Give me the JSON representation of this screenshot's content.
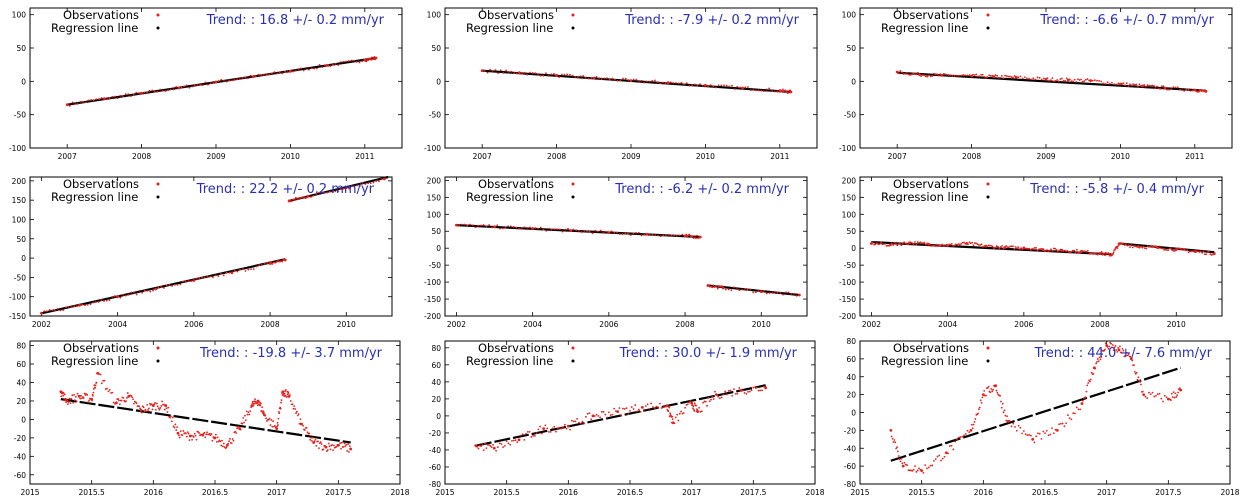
{
  "colors": {
    "observations": "#e8201c",
    "regression": "#000000",
    "trend_text": "#2a2fb5",
    "frame": "#000000"
  },
  "legend": {
    "observations_label": "Observations",
    "regression_label": "Regression line"
  },
  "chart_data": [
    {
      "type": "scatter",
      "trend": "Trend: : 16.8 +/- 0.2 mm/yr",
      "xlim": [
        2006.5,
        2011.5
      ],
      "ylim": [
        -100,
        110
      ],
      "xticks": [
        2007,
        2008,
        2009,
        2010,
        2011
      ],
      "yticks": [
        -100,
        -50,
        0,
        50,
        100
      ],
      "series": [
        {
          "name": "Observations",
          "x": [
            2007.0,
            2007.5,
            2008.0,
            2008.5,
            2009.0,
            2009.5,
            2010.0,
            2010.5,
            2011.0,
            2011.15
          ],
          "y": [
            -35,
            -26,
            -18,
            -10,
            -1,
            7,
            15,
            24,
            32,
            35
          ]
        },
        {
          "name": "Regression line",
          "x": [
            2007.0,
            2011.15
          ],
          "y": [
            -35,
            35
          ]
        }
      ]
    },
    {
      "type": "scatter",
      "trend": "Trend: : -7.9 +/- 0.2 mm/yr",
      "xlim": [
        2006.5,
        2011.5
      ],
      "ylim": [
        -100,
        110
      ],
      "xticks": [
        2007,
        2008,
        2009,
        2010,
        2011
      ],
      "yticks": [
        -100,
        -50,
        0,
        50,
        100
      ],
      "series": [
        {
          "name": "Observations",
          "x": [
            2007.0,
            2007.5,
            2008.0,
            2008.5,
            2009.0,
            2009.5,
            2010.0,
            2010.5,
            2011.0,
            2011.15
          ],
          "y": [
            16,
            13,
            9,
            5,
            1,
            -2,
            -6,
            -10,
            -14,
            -16
          ]
        },
        {
          "name": "Regression line",
          "x": [
            2007.0,
            2011.15
          ],
          "y": [
            16,
            -16
          ]
        }
      ]
    },
    {
      "type": "scatter",
      "trend": "Trend: : -6.6 +/- 0.7 mm/yr",
      "xlim": [
        2006.5,
        2011.5
      ],
      "ylim": [
        -100,
        110
      ],
      "xticks": [
        2007,
        2008,
        2009,
        2010,
        2011
      ],
      "yticks": [
        -100,
        -50,
        0,
        50,
        100
      ],
      "series": [
        {
          "name": "Observations",
          "x": [
            2007.0,
            2007.3,
            2007.6,
            2008.0,
            2008.3,
            2008.6,
            2009.0,
            2009.3,
            2009.6,
            2010.0,
            2010.3,
            2010.6,
            2011.0,
            2011.15
          ],
          "y": [
            14,
            10,
            9,
            8,
            7,
            6,
            3,
            2,
            1,
            -4,
            -7,
            -10,
            -13,
            -15
          ]
        },
        {
          "name": "Regression line",
          "x": [
            2007.0,
            2011.15
          ],
          "y": [
            13,
            -14
          ]
        }
      ]
    },
    {
      "type": "scatter",
      "trend": "Trend: : 22.2 +/- 0.2 mm/yr",
      "xlim": [
        2001.7,
        2011.2
      ],
      "ylim": [
        -150,
        210
      ],
      "xticks": [
        2002,
        2004,
        2006,
        2008,
        2010
      ],
      "yticks": [
        -150,
        -100,
        -50,
        0,
        50,
        100,
        150,
        200
      ],
      "series": [
        {
          "name": "Observations",
          "x": [
            2002.0,
            2003.0,
            2004.0,
            2005.0,
            2006.0,
            2007.0,
            2008.0,
            2008.4,
            2008.5,
            2009.0,
            2010.0,
            2011.0
          ],
          "y": [
            -143,
            -122,
            -100,
            -80,
            -58,
            -38,
            -14,
            -5,
            148,
            160,
            182,
            205
          ]
        },
        {
          "name": "Regression line",
          "x": [
            2002.0,
            2008.4,
            2008.5,
            2011.1
          ],
          "y": [
            -143,
            -3,
            148,
            210
          ]
        }
      ]
    },
    {
      "type": "scatter",
      "trend": "Trend: : -6.2 +/- 0.2 mm/yr",
      "xlim": [
        2001.7,
        2011.2
      ],
      "ylim": [
        -200,
        210
      ],
      "xticks": [
        2002,
        2004,
        2006,
        2008,
        2010
      ],
      "yticks": [
        -200,
        -150,
        -100,
        -50,
        0,
        50,
        100,
        150,
        200
      ],
      "series": [
        {
          "name": "Observations",
          "x": [
            2002.0,
            2003.0,
            2004.0,
            2005.0,
            2006.0,
            2007.0,
            2008.0,
            2008.4,
            2008.6,
            2009.0,
            2010.0,
            2011.0
          ],
          "y": [
            68,
            63,
            58,
            52,
            46,
            41,
            36,
            33,
            -110,
            -117,
            -128,
            -138
          ]
        },
        {
          "name": "Regression line",
          "x": [
            2002.0,
            2008.4,
            2008.6,
            2011.0
          ],
          "y": [
            68,
            33,
            -110,
            -138
          ]
        }
      ]
    },
    {
      "type": "scatter",
      "trend": "Trend: : -5.8 +/- 0.4 mm/yr",
      "xlim": [
        2001.7,
        2011.2
      ],
      "ylim": [
        -200,
        210
      ],
      "xticks": [
        2002,
        2004,
        2006,
        2008,
        2010
      ],
      "yticks": [
        -200,
        -150,
        -100,
        -50,
        0,
        50,
        100,
        150,
        200
      ],
      "series": [
        {
          "name": "Observations",
          "x": [
            2002.0,
            2002.5,
            2003.0,
            2003.5,
            2004.0,
            2004.5,
            2005.0,
            2005.5,
            2006.0,
            2006.5,
            2007.0,
            2007.5,
            2008.0,
            2008.3,
            2008.5,
            2009.0,
            2009.5,
            2010.0,
            2010.5,
            2011.0
          ],
          "y": [
            14,
            10,
            16,
            12,
            8,
            14,
            6,
            2,
            1,
            -4,
            -6,
            -10,
            -15,
            -20,
            12,
            5,
            2,
            -4,
            -10,
            -16
          ]
        },
        {
          "name": "Regression line",
          "x": [
            2002.0,
            2008.3,
            2008.5,
            2011.0
          ],
          "y": [
            18,
            -18,
            14,
            -12
          ]
        }
      ]
    },
    {
      "type": "scatter",
      "trend": "Trend: : -19.8 +/- 3.7 mm/yr",
      "xlim": [
        2015,
        2018
      ],
      "ylim": [
        -70,
        85
      ],
      "xticks": [
        2015,
        2015.5,
        2016,
        2016.5,
        2017,
        2017.5,
        2018
      ],
      "yticks": [
        -60,
        -40,
        -20,
        0,
        20,
        40,
        60,
        80
      ],
      "series": [
        {
          "name": "Observations",
          "x": [
            2015.25,
            2015.3,
            2015.4,
            2015.5,
            2015.55,
            2015.7,
            2015.8,
            2015.9,
            2016.0,
            2016.1,
            2016.2,
            2016.3,
            2016.4,
            2016.5,
            2016.6,
            2016.7,
            2016.8,
            2016.85,
            2016.9,
            2017.0,
            2017.05,
            2017.1,
            2017.2,
            2017.3,
            2017.4,
            2017.5,
            2017.6
          ],
          "y": [
            30,
            20,
            25,
            22,
            50,
            18,
            25,
            10,
            15,
            15,
            -15,
            -18,
            -17,
            -20,
            -28,
            -10,
            15,
            20,
            5,
            -10,
            30,
            25,
            -5,
            -25,
            -30,
            -28,
            -32
          ]
        },
        {
          "name": "Regression line",
          "x": [
            2015.25,
            2017.6
          ],
          "y": [
            22,
            -25
          ]
        }
      ]
    },
    {
      "type": "scatter",
      "trend": "Trend: : 30.0 +/- 1.9 mm/yr",
      "xlim": [
        2015,
        2018
      ],
      "ylim": [
        -80,
        88
      ],
      "xticks": [
        2015,
        2015.5,
        2016,
        2016.5,
        2017,
        2017.5,
        2018
      ],
      "yticks": [
        -80,
        -60,
        -40,
        -20,
        0,
        20,
        40,
        60,
        80
      ],
      "series": [
        {
          "name": "Observations",
          "x": [
            2015.25,
            2015.4,
            2015.6,
            2015.8,
            2016.0,
            2016.2,
            2016.4,
            2016.6,
            2016.8,
            2016.85,
            2017.0,
            2017.05,
            2017.2,
            2017.4,
            2017.6
          ],
          "y": [
            -35,
            -38,
            -28,
            -15,
            -12,
            0,
            5,
            10,
            12,
            -8,
            15,
            5,
            25,
            30,
            33
          ]
        },
        {
          "name": "Regression line",
          "x": [
            2015.25,
            2017.6
          ],
          "y": [
            -35,
            36
          ]
        }
      ]
    },
    {
      "type": "scatter",
      "trend": "Trend: : 44.0 +/- 7.6 mm/yr",
      "xlim": [
        2015,
        2018
      ],
      "ylim": [
        -80,
        80
      ],
      "xticks": [
        2015,
        2015.5,
        2016,
        2016.5,
        2017,
        2017.5,
        2018
      ],
      "yticks": [
        -80,
        -60,
        -40,
        -20,
        0,
        20,
        40,
        60,
        80
      ],
      "series": [
        {
          "name": "Observations",
          "x": [
            2015.25,
            2015.35,
            2015.5,
            2015.7,
            2015.9,
            2016.0,
            2016.1,
            2016.2,
            2016.4,
            2016.6,
            2016.8,
            2016.9,
            2017.0,
            2017.1,
            2017.2,
            2017.3,
            2017.5,
            2017.6
          ],
          "y": [
            -20,
            -60,
            -65,
            -45,
            -20,
            20,
            30,
            -10,
            -30,
            -20,
            10,
            50,
            75,
            70,
            60,
            20,
            15,
            25
          ]
        },
        {
          "name": "Regression line",
          "x": [
            2015.25,
            2017.6
          ],
          "y": [
            -54,
            50
          ]
        }
      ]
    }
  ]
}
